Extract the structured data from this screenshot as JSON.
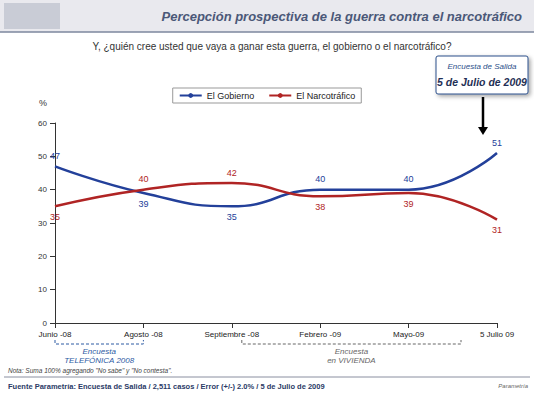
{
  "chart_data": {
    "type": "line",
    "title": "Percepción prospectiva de la guerra contra el narcotráfico",
    "subtitle": "Y, ¿quién cree usted que vaya a ganar esta guerra, el gobierno o el narcotráfico?",
    "y_label": "%",
    "categories": [
      "Junio -08",
      "Agosto -08",
      "Septiembre -08",
      "Febrero -09",
      "Mayo-09",
      "5 Julio 09"
    ],
    "series": [
      {
        "name": "El Gobierno",
        "color": "#23409a",
        "values": [
          47,
          39,
          35,
          40,
          40,
          51
        ]
      },
      {
        "name": "El Narcotráfico",
        "color": "#b02424",
        "values": [
          35,
          40,
          42,
          38,
          39,
          31
        ]
      }
    ],
    "ylim": [
      0,
      60
    ],
    "yticks": [
      0,
      10,
      20,
      30,
      40,
      50,
      60
    ],
    "grid": false,
    "legend": "top",
    "data_labels": true,
    "marker": "none",
    "line_style": "smooth",
    "annotations": {
      "callout": [
        "Encuesta de Salida",
        "5 de Julio de 2009"
      ],
      "periods": [
        {
          "label": "Encuesta\nTELEFÓNICA 2008",
          "from": "Junio -08",
          "to": "Agosto -08"
        },
        {
          "label": "Encuesta\nen VIVIENDA",
          "from": "Septiembre -08",
          "to": "5 Julio 09"
        }
      ]
    },
    "note": "Nota: Suma 100% agregando \"No sabe\" y \"No contesta\".",
    "source": "Fuente Parametría: Encuesta de Salida / 2,511 casos / Error (+/-) 2.0% / 5 de Julio de 2009",
    "logo": "Parametría"
  }
}
